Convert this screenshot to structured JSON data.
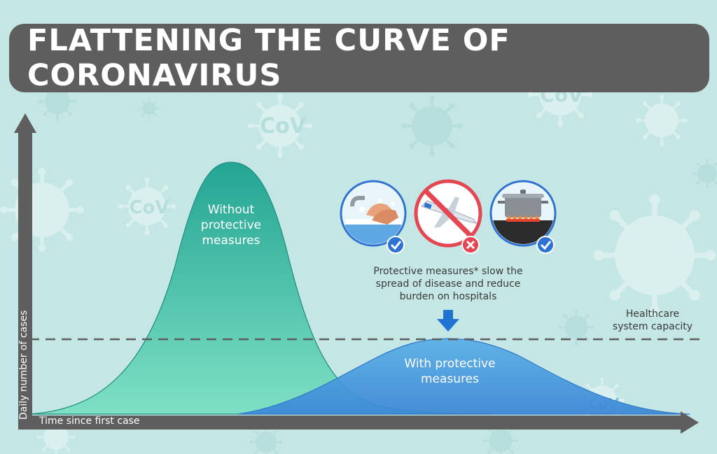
{
  "title": "FLATTENING THE CURVE OF CORONAVIRUS",
  "curves": {
    "without": {
      "label_line1": "Without",
      "label_line2": "protective",
      "label_line3": "measures"
    },
    "with": {
      "label_line1": "With protective",
      "label_line2": "measures"
    }
  },
  "capacity": {
    "line1": "Healthcare",
    "line2": "system capacity"
  },
  "protective_note": {
    "line1": "Protective measures* slow the",
    "line2": "spread of disease and reduce",
    "line3": "burden on hospitals"
  },
  "axes": {
    "y_label": "Daily number of cases",
    "x_label": "Time since first case"
  },
  "icons": [
    {
      "name": "handwashing-icon",
      "status": "check"
    },
    {
      "name": "no-airplane-travel-icon",
      "status": "cross"
    },
    {
      "name": "cooking-pot-icon",
      "status": "check"
    }
  ],
  "background_badge_text": "CoV",
  "colors": {
    "background": "#c4e6e4",
    "banner": "#5e5e5e",
    "axis": "#5e5e5e",
    "without_curve_top": "#24a594",
    "without_curve_bottom": "#7ee0c4",
    "with_curve_top": "#4a9fe0",
    "with_curve_bottom": "#3a86d6",
    "check_badge": "#2e72d2",
    "cross_badge": "#e44653",
    "arrow": "#1f74d2"
  }
}
